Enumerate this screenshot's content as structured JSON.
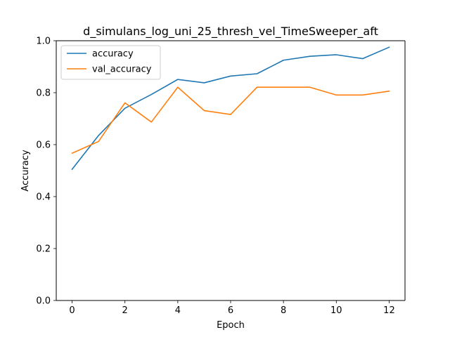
{
  "chart_data": {
    "type": "line",
    "title": "d_simulans_log_uni_25_thresh_vel_TimeSweeper_aft",
    "xlabel": "Epoch",
    "ylabel": "Accuracy",
    "xlim": [
      -0.6,
      12.6
    ],
    "ylim": [
      0.0,
      1.0
    ],
    "xticks": [
      0,
      2,
      4,
      6,
      8,
      10,
      12
    ],
    "yticks": [
      0.0,
      0.2,
      0.4,
      0.6,
      0.8,
      1.0
    ],
    "xtick_labels": [
      "0",
      "2",
      "4",
      "6",
      "8",
      "10",
      "12"
    ],
    "ytick_labels": [
      "0.0",
      "0.2",
      "0.4",
      "0.6",
      "0.8",
      "1.0"
    ],
    "grid": false,
    "legend_position": "upper-left",
    "x": [
      0,
      1,
      2,
      3,
      4,
      5,
      6,
      7,
      8,
      9,
      10,
      11,
      12
    ],
    "series": [
      {
        "name": "accuracy",
        "color": "#1f77b4",
        "values": [
          0.505,
          0.635,
          0.74,
          0.793,
          0.851,
          0.838,
          0.864,
          0.873,
          0.925,
          0.94,
          0.946,
          0.931,
          0.975
        ]
      },
      {
        "name": "val_accuracy",
        "color": "#ff7f0e",
        "values": [
          0.567,
          0.612,
          0.761,
          0.687,
          0.821,
          0.731,
          0.716,
          0.821,
          0.821,
          0.821,
          0.791,
          0.791,
          0.806
        ]
      }
    ]
  }
}
